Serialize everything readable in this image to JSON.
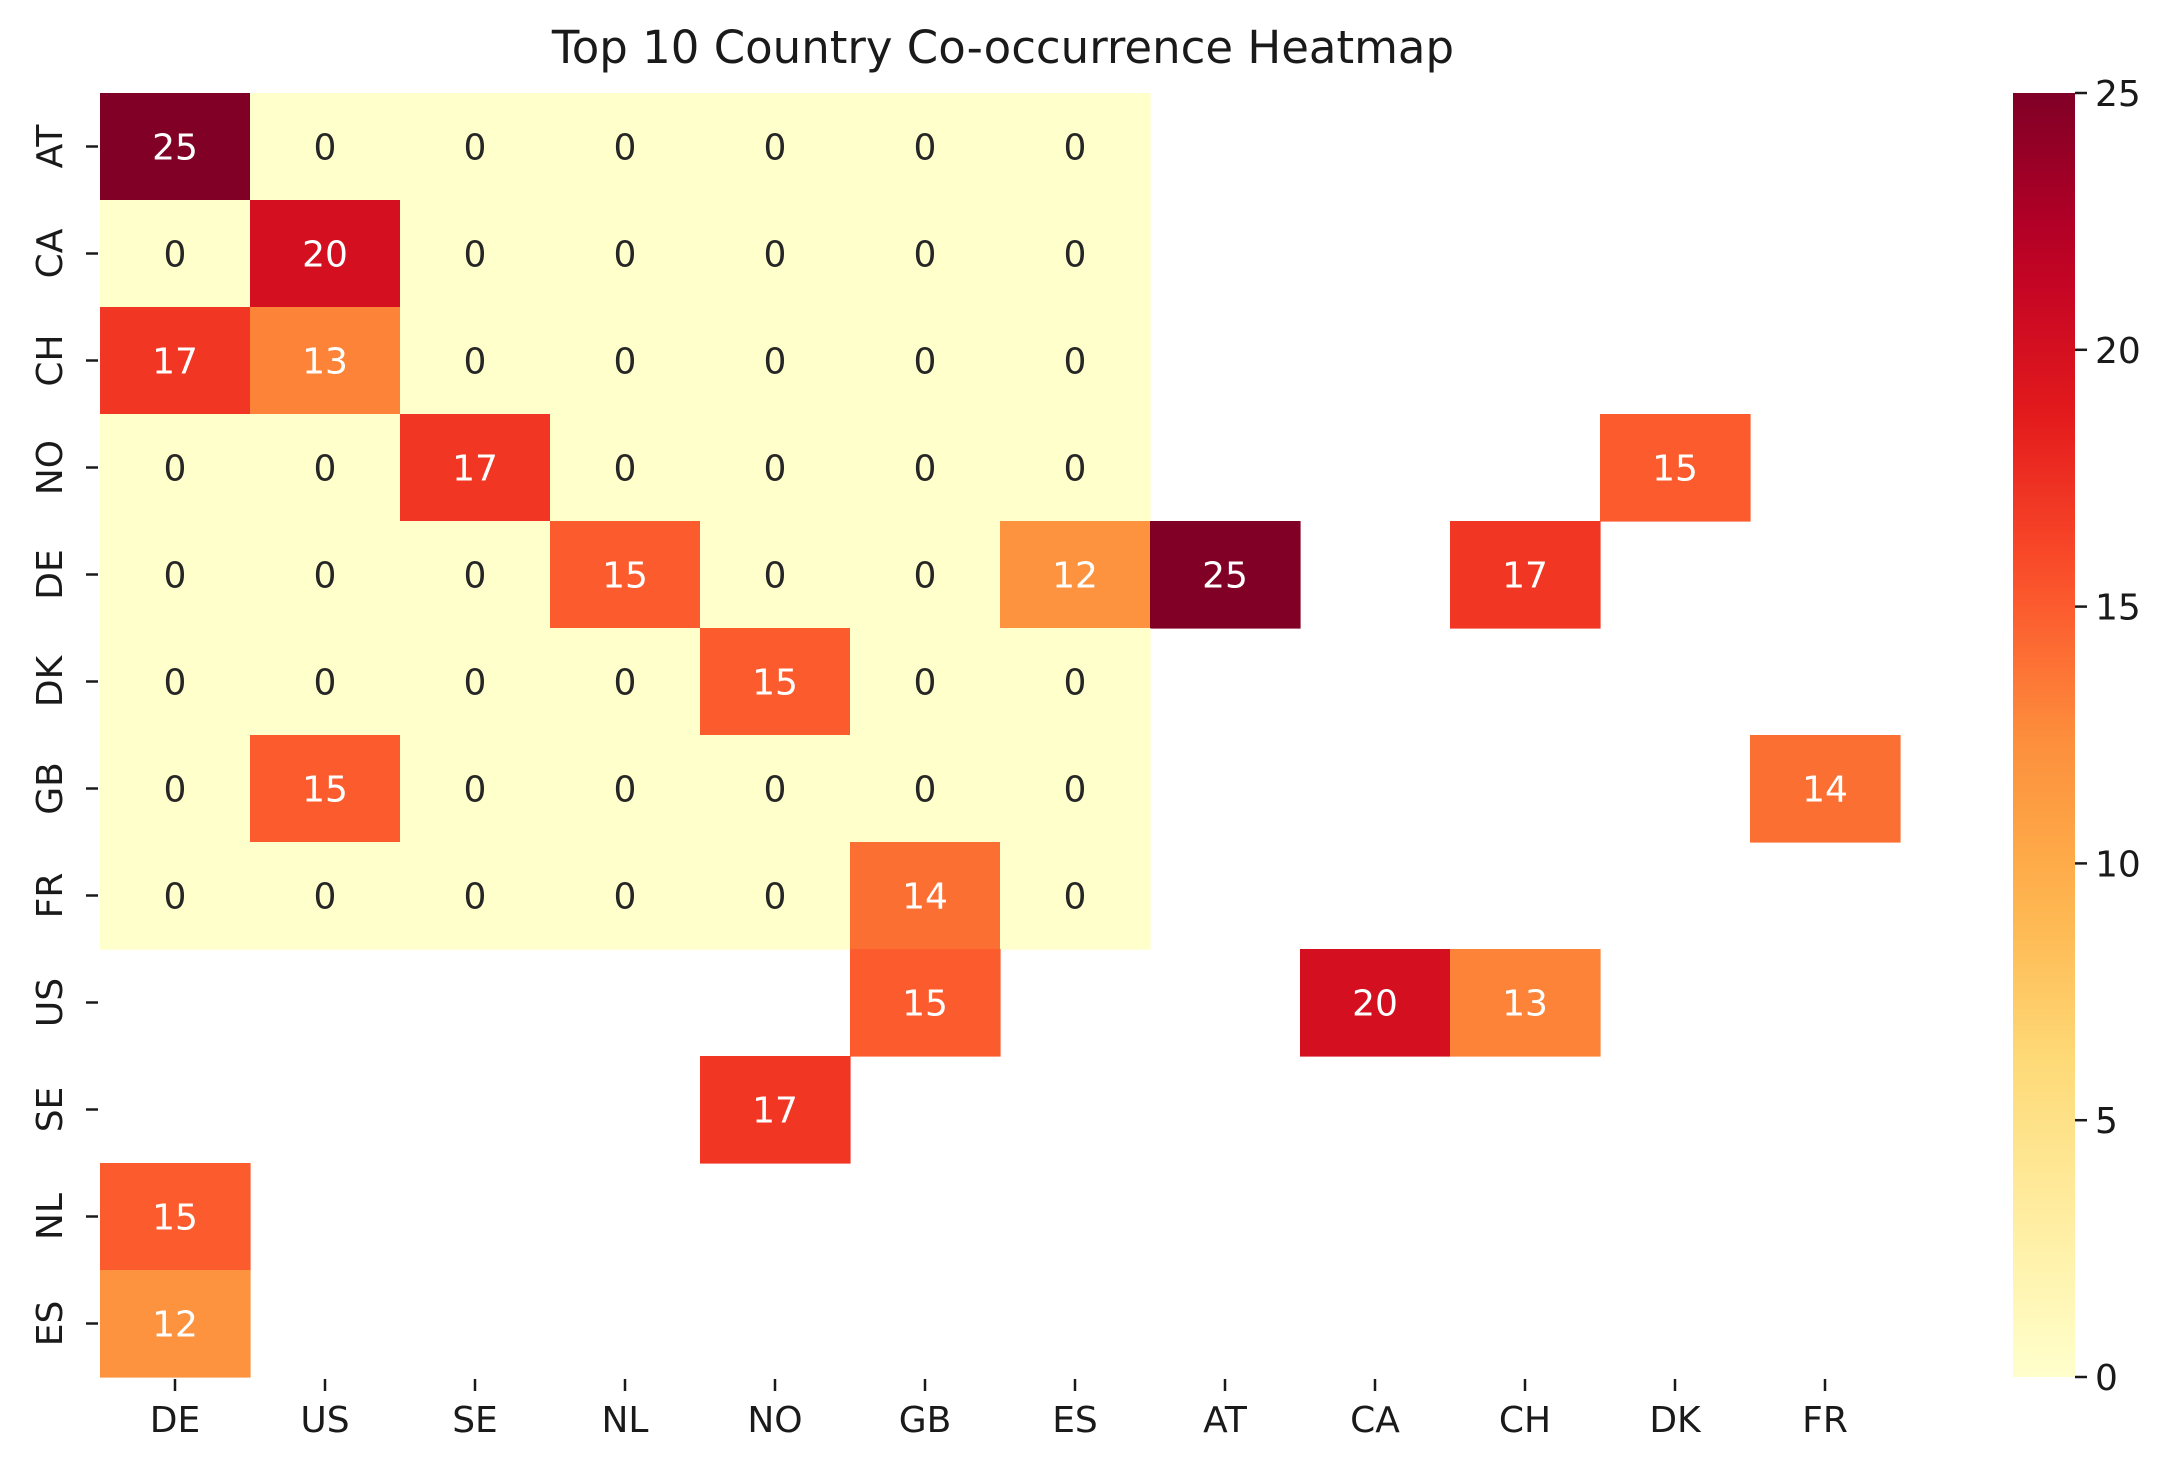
{
  "chart_data": {
    "type": "heatmap",
    "title": "Top 10 Country Co-occurrence Heatmap",
    "xlabel": "",
    "ylabel": "",
    "x_categories": [
      "DE",
      "US",
      "SE",
      "NL",
      "NO",
      "GB",
      "ES",
      "AT",
      "CA",
      "CH",
      "DK",
      "FR"
    ],
    "y_categories": [
      "AT",
      "CA",
      "CH",
      "NO",
      "DE",
      "DK",
      "GB",
      "FR",
      "US",
      "SE",
      "NL",
      "ES"
    ],
    "values": [
      [
        25,
        0,
        0,
        0,
        0,
        0,
        0,
        null,
        null,
        null,
        null,
        null
      ],
      [
        0,
        20,
        0,
        0,
        0,
        0,
        0,
        null,
        null,
        null,
        null,
        null
      ],
      [
        17,
        13,
        0,
        0,
        0,
        0,
        0,
        null,
        null,
        null,
        null,
        null
      ],
      [
        0,
        0,
        17,
        0,
        0,
        0,
        0,
        null,
        null,
        null,
        15,
        null
      ],
      [
        0,
        0,
        0,
        15,
        0,
        0,
        12,
        25,
        null,
        17,
        null,
        null
      ],
      [
        0,
        0,
        0,
        0,
        15,
        0,
        0,
        null,
        null,
        null,
        null,
        null
      ],
      [
        0,
        15,
        0,
        0,
        0,
        0,
        0,
        null,
        null,
        null,
        null,
        14
      ],
      [
        0,
        0,
        0,
        0,
        0,
        14,
        0,
        null,
        null,
        null,
        null,
        null
      ],
      [
        null,
        null,
        null,
        null,
        null,
        15,
        null,
        null,
        20,
        13,
        null,
        null
      ],
      [
        null,
        null,
        null,
        null,
        17,
        null,
        null,
        null,
        null,
        null,
        null,
        null
      ],
      [
        15,
        null,
        null,
        null,
        null,
        null,
        null,
        null,
        null,
        null,
        null,
        null
      ],
      [
        12,
        null,
        null,
        null,
        null,
        null,
        null,
        null,
        null,
        null,
        null,
        null
      ]
    ],
    "colormap": "YlOrRd",
    "colorbar": {
      "range": [
        0,
        25
      ],
      "ticks": [
        0,
        5,
        10,
        15,
        20,
        25
      ]
    },
    "annotations": true,
    "grid": false
  }
}
